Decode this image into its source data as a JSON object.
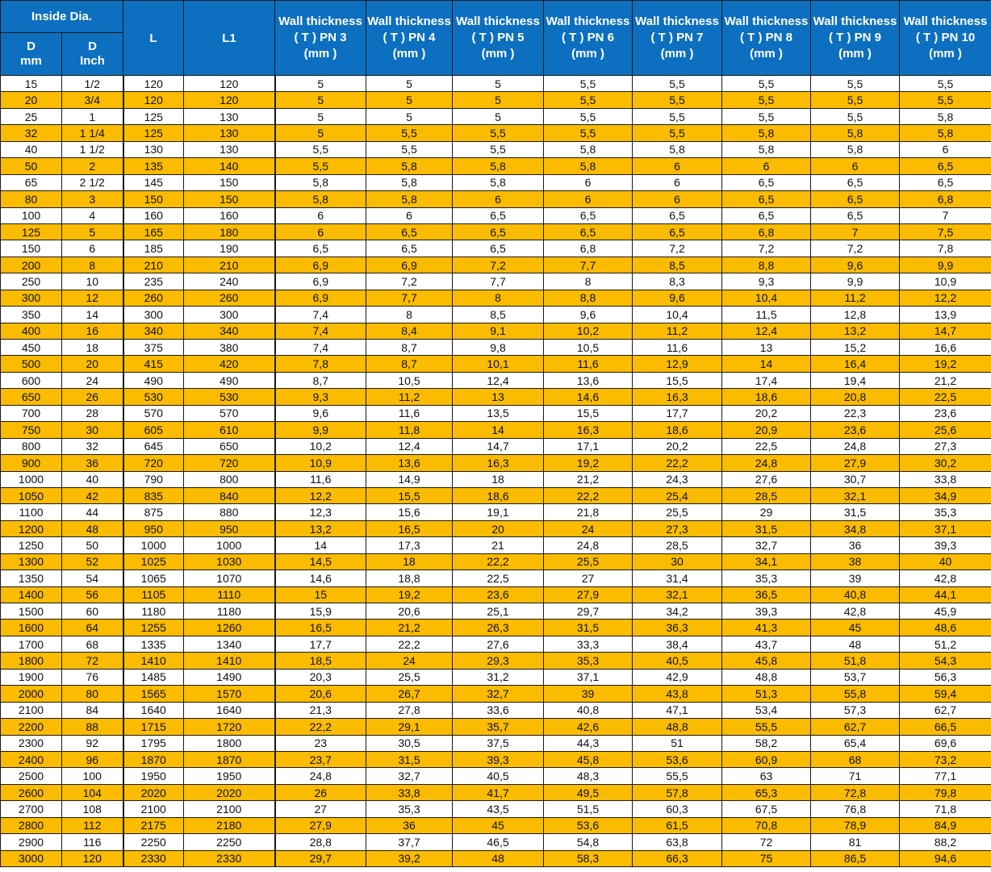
{
  "header": {
    "inside_dia": "Inside Dia.",
    "d_mm": [
      "D",
      "mm"
    ],
    "d_inch": [
      "D",
      "Inch"
    ],
    "l": "L",
    "l1": "L1",
    "wall": [
      [
        "Wall thickness",
        "( T ) PN 3",
        "(mm )"
      ],
      [
        "Wall thickness",
        "( T ) PN 4",
        "(mm )"
      ],
      [
        "Wall thickness",
        "( T ) PN 5",
        "(mm )"
      ],
      [
        "Wall thickness",
        "( T ) PN 6",
        "(mm )"
      ],
      [
        "Wall thickness",
        "( T ) PN 7",
        "(mm )"
      ],
      [
        "Wall thickness",
        "( T ) PN 8",
        "(mm )"
      ],
      [
        "Wall thickness",
        "( T ) PN 9",
        "(mm )"
      ],
      [
        "Wall thickness",
        "( T ) PN 10",
        "(mm )"
      ]
    ]
  },
  "colors": {
    "header_bg": "#0d6fbf",
    "stripe": "#fbbb00"
  },
  "rows": [
    [
      "15",
      "1/2",
      "120",
      "120",
      "5",
      "5",
      "5",
      "5,5",
      "5,5",
      "5,5",
      "5,5",
      "5,5"
    ],
    [
      "20",
      "3/4",
      "120",
      "120",
      "5",
      "5",
      "5",
      "5,5",
      "5,5",
      "5,5",
      "5,5",
      "5,5"
    ],
    [
      "25",
      "1",
      "125",
      "130",
      "5",
      "5",
      "5",
      "5,5",
      "5,5",
      "5,5",
      "5,5",
      "5,8"
    ],
    [
      "32",
      "1 1/4",
      "125",
      "130",
      "5",
      "5,5",
      "5,5",
      "5,5",
      "5,5",
      "5,8",
      "5,8",
      "5,8"
    ],
    [
      "40",
      "1 1/2",
      "130",
      "130",
      "5,5",
      "5,5",
      "5,5",
      "5,8",
      "5,8",
      "5,8",
      "5,8",
      "6"
    ],
    [
      "50",
      "2",
      "135",
      "140",
      "5,5",
      "5,8",
      "5,8",
      "5,8",
      "6",
      "6",
      "6",
      "6,5"
    ],
    [
      "65",
      "2 1/2",
      "145",
      "150",
      "5,8",
      "5,8",
      "5,8",
      "6",
      "6",
      "6,5",
      "6,5",
      "6,5"
    ],
    [
      "80",
      "3",
      "150",
      "150",
      "5,8",
      "5,8",
      "6",
      "6",
      "6",
      "6,5",
      "6,5",
      "6,8"
    ],
    [
      "100",
      "4",
      "160",
      "160",
      "6",
      "6",
      "6,5",
      "6,5",
      "6,5",
      "6,5",
      "6,5",
      "7"
    ],
    [
      "125",
      "5",
      "165",
      "180",
      "6",
      "6,5",
      "6,5",
      "6,5",
      "6,5",
      "6,8",
      "7",
      "7,5"
    ],
    [
      "150",
      "6",
      "185",
      "190",
      "6,5",
      "6,5",
      "6,5",
      "6,8",
      "7,2",
      "7,2",
      "7,2",
      "7,8"
    ],
    [
      "200",
      "8",
      "210",
      "210",
      "6,9",
      "6,9",
      "7,2",
      "7,7",
      "8,5",
      "8,8",
      "9,6",
      "9,9"
    ],
    [
      "250",
      "10",
      "235",
      "240",
      "6,9",
      "7,2",
      "7,7",
      "8",
      "8,3",
      "9,3",
      "9,9",
      "10,9"
    ],
    [
      "300",
      "12",
      "260",
      "260",
      "6,9",
      "7,7",
      "8",
      "8,8",
      "9,6",
      "10,4",
      "11,2",
      "12,2"
    ],
    [
      "350",
      "14",
      "300",
      "300",
      "7,4",
      "8",
      "8,5",
      "9,6",
      "10,4",
      "11,5",
      "12,8",
      "13,9"
    ],
    [
      "400",
      "16",
      "340",
      "340",
      "7,4",
      "8,4",
      "9,1",
      "10,2",
      "11,2",
      "12,4",
      "13,2",
      "14,7"
    ],
    [
      "450",
      "18",
      "375",
      "380",
      "7,4",
      "8,7",
      "9,8",
      "10,5",
      "11,6",
      "13",
      "15,2",
      "16,6"
    ],
    [
      "500",
      "20",
      "415",
      "420",
      "7,8",
      "8,7",
      "10,1",
      "11,6",
      "12,9",
      "14",
      "16,4",
      "19,2"
    ],
    [
      "600",
      "24",
      "490",
      "490",
      "8,7",
      "10,5",
      "12,4",
      "13,6",
      "15,5",
      "17,4",
      "19,4",
      "21,2"
    ],
    [
      "650",
      "26",
      "530",
      "530",
      "9,3",
      "11,2",
      "13",
      "14,6",
      "16,3",
      "18,6",
      "20,8",
      "22,5"
    ],
    [
      "700",
      "28",
      "570",
      "570",
      "9,6",
      "11,6",
      "13,5",
      "15,5",
      "17,7",
      "20,2",
      "22,3",
      "23,6"
    ],
    [
      "750",
      "30",
      "605",
      "610",
      "9,9",
      "11,8",
      "14",
      "16,3",
      "18,6",
      "20,9",
      "23,6",
      "25,6"
    ],
    [
      "800",
      "32",
      "645",
      "650",
      "10,2",
      "12,4",
      "14,7",
      "17,1",
      "20,2",
      "22,5",
      "24,8",
      "27,3"
    ],
    [
      "900",
      "36",
      "720",
      "720",
      "10,9",
      "13,6",
      "16,3",
      "19,2",
      "22,2",
      "24,8",
      "27,9",
      "30,2"
    ],
    [
      "1000",
      "40",
      "790",
      "800",
      "11,6",
      "14,9",
      "18",
      "21,2",
      "24,3",
      "27,6",
      "30,7",
      "33,8"
    ],
    [
      "1050",
      "42",
      "835",
      "840",
      "12,2",
      "15,5",
      "18,6",
      "22,2",
      "25,4",
      "28,5",
      "32,1",
      "34,9"
    ],
    [
      "1100",
      "44",
      "875",
      "880",
      "12,3",
      "15,6",
      "19,1",
      "21,8",
      "25,5",
      "29",
      "31,5",
      "35,3"
    ],
    [
      "1200",
      "48",
      "950",
      "950",
      "13,2",
      "16,5",
      "20",
      "24",
      "27,3",
      "31,5",
      "34,8",
      "37,1"
    ],
    [
      "1250",
      "50",
      "1000",
      "1000",
      "14",
      "17,3",
      "21",
      "24,8",
      "28,5",
      "32,7",
      "36",
      "39,3"
    ],
    [
      "1300",
      "52",
      "1025",
      "1030",
      "14,5",
      "18",
      "22,2",
      "25,5",
      "30",
      "34,1",
      "38",
      "40"
    ],
    [
      "1350",
      "54",
      "1065",
      "1070",
      "14,6",
      "18,8",
      "22,5",
      "27",
      "31,4",
      "35,3",
      "39",
      "42,8"
    ],
    [
      "1400",
      "56",
      "1105",
      "1110",
      "15",
      "19,2",
      "23,6",
      "27,9",
      "32,1",
      "36,5",
      "40,8",
      "44,1"
    ],
    [
      "1500",
      "60",
      "1180",
      "1180",
      "15,9",
      "20,6",
      "25,1",
      "29,7",
      "34,2",
      "39,3",
      "42,8",
      "45,9"
    ],
    [
      "1600",
      "64",
      "1255",
      "1260",
      "16,5",
      "21,2",
      "26,3",
      "31,5",
      "36,3",
      "41,3",
      "45",
      "48,6"
    ],
    [
      "1700",
      "68",
      "1335",
      "1340",
      "17,7",
      "22,2",
      "27,6",
      "33,3",
      "38,4",
      "43,7",
      "48",
      "51,2"
    ],
    [
      "1800",
      "72",
      "1410",
      "1410",
      "18,5",
      "24",
      "29,3",
      "35,3",
      "40,5",
      "45,8",
      "51,8",
      "54,3"
    ],
    [
      "1900",
      "76",
      "1485",
      "1490",
      "20,3",
      "25,5",
      "31,2",
      "37,1",
      "42,9",
      "48,8",
      "53,7",
      "56,3"
    ],
    [
      "2000",
      "80",
      "1565",
      "1570",
      "20,6",
      "26,7",
      "32,7",
      "39",
      "43,8",
      "51,3",
      "55,8",
      "59,4"
    ],
    [
      "2100",
      "84",
      "1640",
      "1640",
      "21,3",
      "27,8",
      "33,6",
      "40,8",
      "47,1",
      "53,4",
      "57,3",
      "62,7"
    ],
    [
      "2200",
      "88",
      "1715",
      "1720",
      "22,2",
      "29,1",
      "35,7",
      "42,6",
      "48,8",
      "55,5",
      "62,7",
      "66,5"
    ],
    [
      "2300",
      "92",
      "1795",
      "1800",
      "23",
      "30,5",
      "37,5",
      "44,3",
      "51",
      "58,2",
      "65,4",
      "69,6"
    ],
    [
      "2400",
      "96",
      "1870",
      "1870",
      "23,7",
      "31,5",
      "39,3",
      "45,8",
      "53,6",
      "60,9",
      "68",
      "73,2"
    ],
    [
      "2500",
      "100",
      "1950",
      "1950",
      "24,8",
      "32,7",
      "40,5",
      "48,3",
      "55,5",
      "63",
      "71",
      "77,1"
    ],
    [
      "2600",
      "104",
      "2020",
      "2020",
      "26",
      "33,8",
      "41,7",
      "49,5",
      "57,8",
      "65,3",
      "72,8",
      "79,8"
    ],
    [
      "2700",
      "108",
      "2100",
      "2100",
      "27",
      "35,3",
      "43,5",
      "51,5",
      "60,3",
      "67,5",
      "76,8",
      "71,8"
    ],
    [
      "2800",
      "112",
      "2175",
      "2180",
      "27,9",
      "36",
      "45",
      "53,6",
      "61,5",
      "70,8",
      "78,9",
      "84,9"
    ],
    [
      "2900",
      "116",
      "2250",
      "2250",
      "28,8",
      "37,7",
      "46,5",
      "54,8",
      "63,8",
      "72",
      "81",
      "88,2"
    ],
    [
      "3000",
      "120",
      "2330",
      "2330",
      "29,7",
      "39,2",
      "48",
      "58,3",
      "66,3",
      "75",
      "86,5",
      "94,6"
    ]
  ]
}
